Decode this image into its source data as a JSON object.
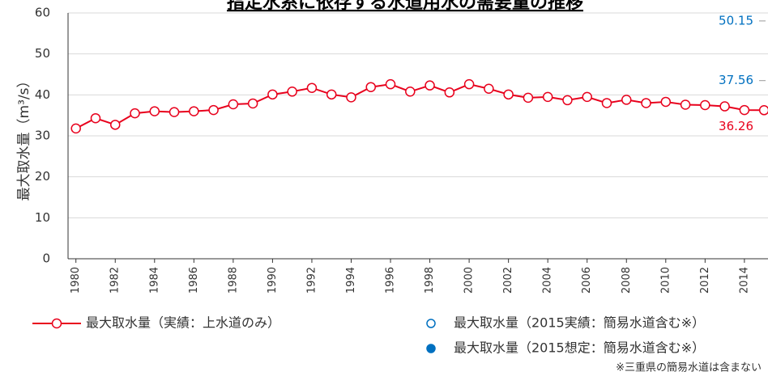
{
  "chart_data": {
    "type": "line",
    "title": "指定水系に依存する水道用水の需要量の推移",
    "ylabel": "最大取水量（m³/s）",
    "ylim": [
      0,
      60
    ],
    "yticks": [
      0,
      10,
      20,
      30,
      40,
      50,
      60
    ],
    "xlim": [
      1979.6,
      2015.2
    ],
    "xticks": [
      1980,
      1982,
      1984,
      1986,
      1988,
      1990,
      1992,
      1994,
      1996,
      1998,
      2000,
      2002,
      2004,
      2006,
      2008,
      2010,
      2012,
      2014
    ],
    "grid": true,
    "series": [
      {
        "name": "最大取水量（実績：上水道のみ）",
        "color": "#e8001c",
        "x": [
          1980,
          1981,
          1982,
          1983,
          1984,
          1985,
          1986,
          1987,
          1988,
          1989,
          1990,
          1991,
          1992,
          1993,
          1994,
          1995,
          1996,
          1997,
          1998,
          1999,
          2000,
          2001,
          2002,
          2003,
          2004,
          2005,
          2006,
          2007,
          2008,
          2009,
          2010,
          2011,
          2012,
          2013,
          2014,
          2015
        ],
        "values": [
          31.8,
          34.3,
          32.7,
          35.5,
          36.0,
          35.8,
          36.0,
          36.3,
          37.7,
          37.9,
          40.1,
          40.8,
          41.7,
          40.1,
          39.4,
          41.9,
          42.6,
          40.8,
          42.3,
          40.6,
          42.6,
          41.5,
          40.1,
          39.3,
          39.5,
          38.7,
          39.5,
          38.0,
          38.8,
          38.0,
          38.3,
          37.6,
          37.5,
          37.2,
          36.3,
          36.26
        ]
      },
      {
        "name": "最大取水量（2015実績：簡易水道含む※）",
        "color": "#0070c0",
        "x": [
          2015
        ],
        "values": [
          37.56
        ]
      },
      {
        "name": "最大取水量（2015想定：簡易水道含む※）",
        "color": "#0070c0",
        "x": [
          2015
        ],
        "values": [
          50.15
        ]
      }
    ],
    "note": "※三重県の簡易水道は含まない"
  }
}
